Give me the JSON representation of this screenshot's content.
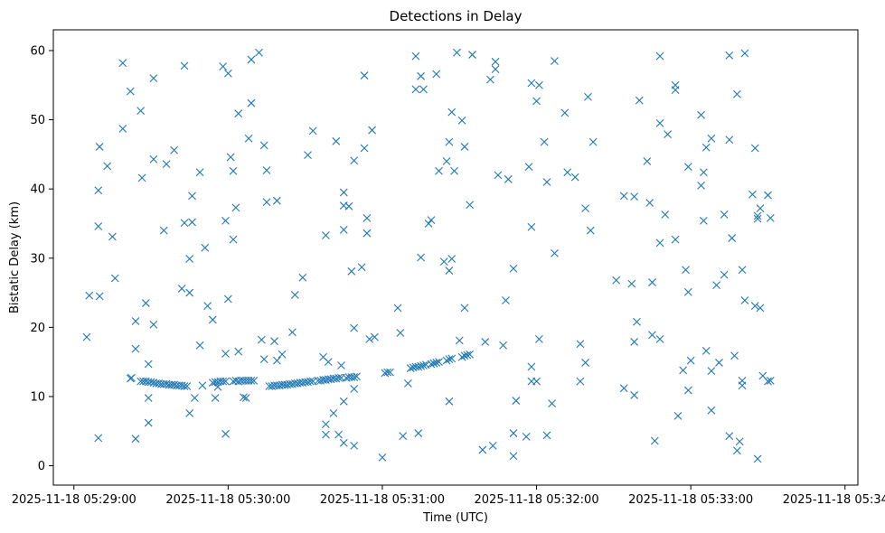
{
  "chart_data": {
    "type": "scatter",
    "title": "Detections in Delay",
    "xlabel": "Time (UTC)",
    "ylabel": "Bistatic Delay (km)",
    "marker": "x",
    "color": "#1f77b4",
    "grid": false,
    "xlim": [
      -8,
      305
    ],
    "ylim": [
      -2.8,
      63
    ],
    "x_ticks": [
      {
        "value": 0,
        "label": "2025-11-18 05:29:00"
      },
      {
        "value": 60,
        "label": "2025-11-18 05:30:00"
      },
      {
        "value": 120,
        "label": "2025-11-18 05:31:00"
      },
      {
        "value": 180,
        "label": "2025-11-18 05:32:00"
      },
      {
        "value": 240,
        "label": "2025-11-18 05:33:00"
      },
      {
        "value": 300,
        "label": "2025-11-18 05:34:00"
      }
    ],
    "y_ticks": [
      0,
      10,
      20,
      30,
      40,
      50,
      60
    ],
    "x_units": "seconds after 2025-11-18 05:29:00",
    "points": [
      [
        5,
        18.6
      ],
      [
        6,
        24.6
      ],
      [
        9.5,
        4
      ],
      [
        10,
        24.5
      ],
      [
        9.5,
        34.6
      ],
      [
        9.5,
        39.8
      ],
      [
        10,
        46.1
      ],
      [
        13,
        43.3
      ],
      [
        15,
        33.1
      ],
      [
        16,
        27.1
      ],
      [
        19,
        48.7
      ],
      [
        19,
        58.2
      ],
      [
        22,
        54.1
      ],
      [
        24,
        16.9
      ],
      [
        24,
        20.9
      ],
      [
        24,
        3.9
      ],
      [
        26,
        51.3
      ],
      [
        26.5,
        41.6
      ],
      [
        28,
        23.5
      ],
      [
        29,
        14.7
      ],
      [
        29,
        6.2
      ],
      [
        29,
        9.8
      ],
      [
        31,
        20.4
      ],
      [
        31,
        44.3
      ],
      [
        31,
        56
      ],
      [
        35,
        34
      ],
      [
        36,
        43.6
      ],
      [
        39,
        45.6
      ],
      [
        42,
        25.6
      ],
      [
        43,
        57.8
      ],
      [
        43,
        35.1
      ],
      [
        45,
        29.9
      ],
      [
        45,
        7.6
      ],
      [
        45,
        25
      ],
      [
        46,
        35.2
      ],
      [
        46,
        39
      ],
      [
        47,
        9.8
      ],
      [
        49,
        42.4
      ],
      [
        49,
        17.4
      ],
      [
        50,
        11.6
      ],
      [
        51,
        31.5
      ],
      [
        52,
        23.1
      ],
      [
        54,
        21.1
      ],
      [
        55,
        9.8
      ],
      [
        56,
        11.4
      ],
      [
        58,
        57.7
      ],
      [
        59,
        35.4
      ],
      [
        59,
        16.2
      ],
      [
        59,
        4.6
      ],
      [
        60,
        24.1
      ],
      [
        60,
        56.7
      ],
      [
        61,
        44.6
      ],
      [
        62,
        42.6
      ],
      [
        62,
        32.7
      ],
      [
        63,
        37.3
      ],
      [
        64,
        50.9
      ],
      [
        64,
        16.5
      ],
      [
        66,
        9.9
      ],
      [
        67,
        9.8
      ],
      [
        68,
        47.3
      ],
      [
        69,
        52.4
      ],
      [
        69,
        58.7
      ],
      [
        72,
        59.7
      ],
      [
        73,
        18.2
      ],
      [
        74,
        46.3
      ],
      [
        74,
        15.4
      ],
      [
        75,
        42.7
      ],
      [
        75,
        38.1
      ],
      [
        78,
        18
      ],
      [
        79,
        38.3
      ],
      [
        79,
        15.2
      ],
      [
        81,
        16.1
      ],
      [
        85,
        19.3
      ],
      [
        86,
        24.7
      ],
      [
        89,
        27.2
      ],
      [
        91,
        44.9
      ],
      [
        93,
        48.4
      ],
      [
        97,
        15.7
      ],
      [
        98,
        33.3
      ],
      [
        98,
        6
      ],
      [
        98,
        4.5
      ],
      [
        99,
        15
      ],
      [
        101,
        7.6
      ],
      [
        102,
        46.9
      ],
      [
        103,
        4.5
      ],
      [
        104,
        14.5
      ],
      [
        105,
        3.3
      ],
      [
        105,
        9.3
      ],
      [
        105,
        34.1
      ],
      [
        105,
        37.6
      ],
      [
        105,
        39.5
      ],
      [
        107,
        37.5
      ],
      [
        108,
        28.1
      ],
      [
        109,
        19.9
      ],
      [
        109,
        11.1
      ],
      [
        109,
        2.9
      ],
      [
        109,
        44.1
      ],
      [
        112,
        28.7
      ],
      [
        113,
        45.9
      ],
      [
        113,
        56.4
      ],
      [
        114,
        35.8
      ],
      [
        114,
        33.6
      ],
      [
        115,
        18.3
      ],
      [
        116,
        48.5
      ],
      [
        117,
        18.6
      ],
      [
        120,
        1.2
      ],
      [
        126,
        22.8
      ],
      [
        127,
        19.2
      ],
      [
        128,
        4.3
      ],
      [
        130,
        11.9
      ],
      [
        133,
        54.4
      ],
      [
        133,
        59.2
      ],
      [
        134,
        4.7
      ],
      [
        135,
        30.1
      ],
      [
        135,
        56.3
      ],
      [
        136,
        54.4
      ],
      [
        138,
        35
      ],
      [
        139,
        35.5
      ],
      [
        141,
        56.6
      ],
      [
        142,
        42.6
      ],
      [
        144,
        29.5
      ],
      [
        145,
        44
      ],
      [
        146,
        9.3
      ],
      [
        146,
        46.8
      ],
      [
        146,
        28.2
      ],
      [
        147,
        29.9
      ],
      [
        147,
        51.1
      ],
      [
        148,
        42.6
      ],
      [
        149,
        59.7
      ],
      [
        150,
        18.1
      ],
      [
        151,
        49.9
      ],
      [
        152,
        46.1
      ],
      [
        152,
        22.8
      ],
      [
        154,
        37.7
      ],
      [
        155,
        59.4
      ],
      [
        159,
        2.3
      ],
      [
        160,
        17.9
      ],
      [
        162,
        55.8
      ],
      [
        163,
        2.9
      ],
      [
        164,
        58.4
      ],
      [
        164,
        57.3
      ],
      [
        165,
        42
      ],
      [
        167,
        17.4
      ],
      [
        168,
        23.9
      ],
      [
        169,
        41.4
      ],
      [
        171,
        28.5
      ],
      [
        171,
        4.7
      ],
      [
        171,
        1.4
      ],
      [
        172,
        9.4
      ],
      [
        176,
        4.2
      ],
      [
        177,
        43.2
      ],
      [
        178,
        55.3
      ],
      [
        178,
        34.5
      ],
      [
        178,
        14.3
      ],
      [
        178,
        12.2
      ],
      [
        180,
        12.2
      ],
      [
        180,
        52.7
      ],
      [
        181,
        55
      ],
      [
        181,
        18.3
      ],
      [
        183,
        46.8
      ],
      [
        184,
        4.4
      ],
      [
        184,
        41
      ],
      [
        186,
        9
      ],
      [
        187,
        58.5
      ],
      [
        187,
        30.7
      ],
      [
        191,
        51
      ],
      [
        192,
        42.4
      ],
      [
        195,
        41.7
      ],
      [
        197,
        17.6
      ],
      [
        197,
        12.2
      ],
      [
        199,
        14.9
      ],
      [
        199,
        37.2
      ],
      [
        200,
        53.3
      ],
      [
        201,
        34
      ],
      [
        202,
        46.8
      ],
      [
        211,
        26.8
      ],
      [
        214,
        39
      ],
      [
        214,
        11.2
      ],
      [
        217,
        26.3
      ],
      [
        218,
        38.9
      ],
      [
        218,
        10.2
      ],
      [
        218,
        17.9
      ],
      [
        219,
        20.8
      ],
      [
        220,
        52.8
      ],
      [
        223,
        44
      ],
      [
        224,
        38
      ],
      [
        225,
        18.9
      ],
      [
        225,
        26.5
      ],
      [
        226,
        3.6
      ],
      [
        228,
        59.2
      ],
      [
        228,
        49.5
      ],
      [
        228,
        32.2
      ],
      [
        228,
        18.3
      ],
      [
        230,
        36.3
      ],
      [
        231,
        47.9
      ],
      [
        234,
        32.7
      ],
      [
        234,
        55
      ],
      [
        234,
        54.3
      ],
      [
        235,
        7.2
      ],
      [
        237,
        13.8
      ],
      [
        238,
        28.3
      ],
      [
        239,
        25.1
      ],
      [
        239,
        43.2
      ],
      [
        239,
        10.9
      ],
      [
        240,
        15.2
      ],
      [
        244,
        50.7
      ],
      [
        244,
        40.5
      ],
      [
        245,
        35.4
      ],
      [
        245,
        42.4
      ],
      [
        246,
        46
      ],
      [
        246,
        16.6
      ],
      [
        248,
        13.7
      ],
      [
        248,
        8
      ],
      [
        248,
        47.3
      ],
      [
        250,
        26.1
      ],
      [
        251,
        14.9
      ],
      [
        253,
        27.6
      ],
      [
        253,
        36.3
      ],
      [
        255,
        59.3
      ],
      [
        255,
        47.1
      ],
      [
        255,
        4.3
      ],
      [
        256,
        32.9
      ],
      [
        257,
        15.9
      ],
      [
        258,
        53.7
      ],
      [
        258,
        2.2
      ],
      [
        259,
        3.5
      ],
      [
        260,
        28.3
      ],
      [
        260,
        12.3
      ],
      [
        260,
        11.6
      ],
      [
        261,
        59.6
      ],
      [
        261,
        23.9
      ],
      [
        264,
        39.2
      ],
      [
        265,
        23.1
      ],
      [
        265,
        45.9
      ],
      [
        266,
        1
      ],
      [
        266,
        35.7
      ],
      [
        266,
        36.1
      ],
      [
        267,
        37.2
      ],
      [
        267,
        22.8
      ],
      [
        268,
        13
      ],
      [
        270,
        39.1
      ],
      [
        270,
        12.2
      ],
      [
        271,
        35.8
      ],
      [
        271,
        12.3
      ],
      [
        22,
        12.6
      ],
      [
        22.4,
        12.7
      ],
      [
        26,
        12.2
      ],
      [
        27,
        12.2
      ],
      [
        28,
        12.2
      ],
      [
        29,
        12.1
      ],
      [
        30,
        12.1
      ],
      [
        31,
        12
      ],
      [
        32,
        11.9
      ],
      [
        33,
        11.9
      ],
      [
        34,
        11.8
      ],
      [
        35,
        11.8
      ],
      [
        36,
        11.8
      ],
      [
        37,
        11.7
      ],
      [
        38,
        11.7
      ],
      [
        39,
        11.7
      ],
      [
        40,
        11.6
      ],
      [
        41,
        11.6
      ],
      [
        42,
        11.6
      ],
      [
        43,
        11.5
      ],
      [
        44,
        11.5
      ],
      [
        54,
        12
      ],
      [
        55,
        12.1
      ],
      [
        56,
        12.1
      ],
      [
        57,
        12.2
      ],
      [
        58,
        12.2
      ],
      [
        59,
        12.2
      ],
      [
        62,
        12.2
      ],
      [
        63,
        12.3
      ],
      [
        64,
        12.2
      ],
      [
        65,
        12.3
      ],
      [
        66,
        12.3
      ],
      [
        67,
        12.3
      ],
      [
        68,
        12.3
      ],
      [
        69,
        12.3
      ],
      [
        70,
        12.3
      ],
      [
        76,
        11.5
      ],
      [
        77,
        11.5
      ],
      [
        78,
        11.6
      ],
      [
        79,
        11.6
      ],
      [
        80,
        11.6
      ],
      [
        81,
        11.7
      ],
      [
        82,
        11.7
      ],
      [
        83,
        11.7
      ],
      [
        84,
        11.8
      ],
      [
        85,
        11.8
      ],
      [
        86,
        11.9
      ],
      [
        87,
        11.9
      ],
      [
        88,
        12
      ],
      [
        89,
        12
      ],
      [
        90,
        12.1
      ],
      [
        91,
        12.1
      ],
      [
        92,
        12.2
      ],
      [
        93,
        12.2
      ],
      [
        95,
        12.3
      ],
      [
        96,
        12.3
      ],
      [
        97,
        12.4
      ],
      [
        98,
        12.4
      ],
      [
        99,
        12.5
      ],
      [
        100,
        12.5
      ],
      [
        101,
        12.6
      ],
      [
        102,
        12.6
      ],
      [
        103,
        12.7
      ],
      [
        104,
        12.7
      ],
      [
        106,
        12.7
      ],
      [
        107,
        12.8
      ],
      [
        108,
        12.8
      ],
      [
        109,
        12.8
      ],
      [
        110,
        12.9
      ],
      [
        121,
        13.4
      ],
      [
        122,
        13.5
      ],
      [
        123,
        13.5
      ],
      [
        131,
        14.1
      ],
      [
        132,
        14.2
      ],
      [
        133,
        14.3
      ],
      [
        134,
        14.3
      ],
      [
        135,
        14.4
      ],
      [
        136,
        14.5
      ],
      [
        137,
        14.6
      ],
      [
        139,
        14.7
      ],
      [
        140,
        14.8
      ],
      [
        141,
        14.9
      ],
      [
        142,
        15
      ],
      [
        145,
        15.2
      ],
      [
        146,
        15.4
      ],
      [
        147,
        15.5
      ],
      [
        151,
        15.7
      ],
      [
        152,
        15.9
      ],
      [
        153,
        16
      ],
      [
        154,
        16.1
      ]
    ]
  }
}
